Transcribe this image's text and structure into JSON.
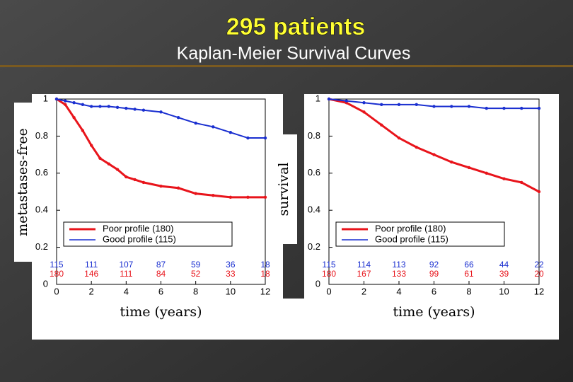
{
  "slide": {
    "title": "295 patients",
    "subtitle": "Kaplan-Meier Survival Curves"
  },
  "chart_data": [
    {
      "type": "line",
      "ylabel": "metastases-free",
      "xlabel": "time (years)",
      "x": [
        0,
        0.5,
        1,
        1.5,
        2,
        2.5,
        3,
        3.5,
        4,
        4.5,
        5,
        6,
        7,
        8,
        9,
        10,
        11,
        12
      ],
      "xlim": [
        0,
        12
      ],
      "xticks": [
        0,
        2,
        4,
        6,
        8,
        10,
        12
      ],
      "ylim": [
        0,
        1
      ],
      "yticks": [
        0,
        0.2,
        0.4,
        0.6,
        0.8,
        1
      ],
      "series": [
        {
          "name": "Poor profile (180)",
          "color": "#e8141b",
          "values": [
            1,
            0.97,
            0.9,
            0.83,
            0.75,
            0.68,
            0.65,
            0.62,
            0.58,
            0.565,
            0.55,
            0.53,
            0.52,
            0.49,
            0.48,
            0.47,
            0.47,
            0.47
          ],
          "at_risk": [
            180,
            146,
            111,
            84,
            52,
            33,
            18
          ]
        },
        {
          "name": "Good profile (115)",
          "color": "#1a2fd0",
          "values": [
            1,
            0.99,
            0.98,
            0.97,
            0.96,
            0.96,
            0.96,
            0.955,
            0.95,
            0.945,
            0.94,
            0.93,
            0.9,
            0.87,
            0.85,
            0.82,
            0.79,
            0.79
          ],
          "at_risk": [
            115,
            111,
            107,
            87,
            59,
            36,
            18
          ]
        }
      ]
    },
    {
      "type": "line",
      "ylabel": "survival",
      "xlabel": "time (years)",
      "x": [
        0,
        1,
        2,
        3,
        4,
        5,
        6,
        7,
        8,
        9,
        10,
        11,
        12
      ],
      "xlim": [
        0,
        12
      ],
      "xticks": [
        0,
        2,
        4,
        6,
        8,
        10,
        12
      ],
      "ylim": [
        0,
        1
      ],
      "yticks": [
        0,
        0.2,
        0.4,
        0.6,
        0.8,
        1
      ],
      "series": [
        {
          "name": "Poor profile (180)",
          "color": "#e8141b",
          "values": [
            1,
            0.98,
            0.93,
            0.86,
            0.79,
            0.74,
            0.7,
            0.66,
            0.63,
            0.6,
            0.57,
            0.55,
            0.5
          ],
          "at_risk": [
            180,
            167,
            133,
            99,
            61,
            39,
            20
          ]
        },
        {
          "name": "Good profile (115)",
          "color": "#1a2fd0",
          "values": [
            1,
            0.99,
            0.98,
            0.97,
            0.97,
            0.97,
            0.96,
            0.96,
            0.96,
            0.95,
            0.95,
            0.95,
            0.95
          ],
          "at_risk": [
            115,
            114,
            113,
            92,
            66,
            44,
            22
          ]
        }
      ]
    }
  ]
}
